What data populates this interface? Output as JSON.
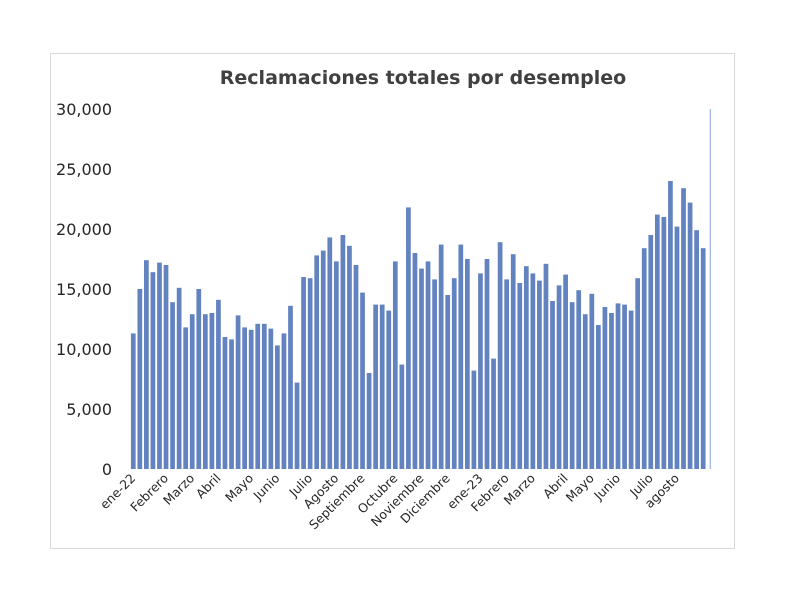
{
  "chart_data": {
    "type": "bar",
    "title": "Reclamaciones totales por desempleo",
    "xlabel": "",
    "ylabel": "",
    "ylim": [
      0,
      30000
    ],
    "yticks": [
      0,
      5000,
      10000,
      15000,
      20000,
      25000,
      30000
    ],
    "ytick_labels": [
      "0",
      "5,000",
      "10,000",
      "15,000",
      "20,000",
      "25,000",
      "30,000"
    ],
    "grid": false,
    "legend": "none",
    "bar_color": "#6282c0",
    "x_tick_labels": [
      {
        "index": 0,
        "label": "ene-22"
      },
      {
        "index": 5,
        "label": "Febrero"
      },
      {
        "index": 9,
        "label": "Marzo"
      },
      {
        "index": 13,
        "label": "Abril"
      },
      {
        "index": 18,
        "label": "Mayo"
      },
      {
        "index": 22,
        "label": "Junio"
      },
      {
        "index": 27,
        "label": "Julio"
      },
      {
        "index": 31,
        "label": "Agosto"
      },
      {
        "index": 35,
        "label": "Septiembre"
      },
      {
        "index": 40,
        "label": "Octubre"
      },
      {
        "index": 44,
        "label": "Noviembre"
      },
      {
        "index": 48,
        "label": "Diciembre"
      },
      {
        "index": 53,
        "label": "ene-23"
      },
      {
        "index": 57,
        "label": "Febrero"
      },
      {
        "index": 61,
        "label": "Marzo"
      },
      {
        "index": 66,
        "label": "Abril"
      },
      {
        "index": 70,
        "label": "Mayo"
      },
      {
        "index": 74,
        "label": "Junio"
      },
      {
        "index": 79,
        "label": "Julio"
      },
      {
        "index": 83,
        "label": "agosto"
      }
    ],
    "values": [
      11300,
      15000,
      17400,
      16400,
      17200,
      17000,
      13900,
      15100,
      11800,
      12900,
      15000,
      12900,
      13000,
      14100,
      11000,
      10800,
      12800,
      11800,
      11600,
      12100,
      12100,
      11700,
      10300,
      11300,
      13600,
      7200,
      16000,
      15900,
      17800,
      18200,
      19300,
      17300,
      19500,
      18600,
      17000,
      14700,
      8000,
      13700,
      13700,
      13200,
      17300,
      8700,
      21800,
      18000,
      16700,
      17300,
      15800,
      18700,
      14500,
      15900,
      18700,
      17500,
      8200,
      16300,
      17500,
      9200,
      18900,
      15800,
      17900,
      15500,
      16900,
      16300,
      15700,
      17100,
      14000,
      15300,
      16200,
      13900,
      14900,
      12900,
      14600,
      12000,
      13500,
      13000,
      13800,
      13700,
      13200,
      15900,
      18400,
      19500,
      21200,
      21000,
      24000,
      20200,
      23400,
      22200,
      19900,
      18400,
      30000
    ]
  }
}
